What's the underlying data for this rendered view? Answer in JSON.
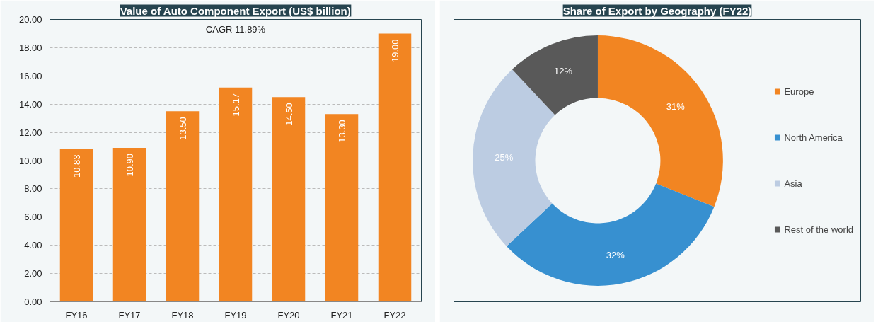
{
  "chart_data": [
    {
      "type": "bar",
      "title": "Value of Auto Component Export (US$ billion)",
      "categories": [
        "FY16",
        "FY17",
        "FY18",
        "FY19",
        "FY20",
        "FY21",
        "FY22"
      ],
      "values": [
        10.83,
        10.9,
        13.5,
        15.17,
        14.5,
        13.3,
        19.0
      ],
      "value_labels": [
        "10.83",
        "10.90",
        "13.50",
        "15.17",
        "14.50",
        "13.30",
        "19.00"
      ],
      "color": "#f28522",
      "ylim": [
        0,
        20
      ],
      "yticks": [
        {
          "value": 0,
          "label": "0.00"
        },
        {
          "value": 2,
          "label": "2.00"
        },
        {
          "value": 4,
          "label": "4.00"
        },
        {
          "value": 6,
          "label": "6.00"
        },
        {
          "value": 8,
          "label": "8.00"
        },
        {
          "value": 10,
          "label": "10.00"
        },
        {
          "value": 12,
          "label": "12.00"
        },
        {
          "value": 14,
          "label": "14.00"
        },
        {
          "value": 16,
          "label": "16.00"
        },
        {
          "value": 18,
          "label": "18.00"
        },
        {
          "value": 20,
          "label": "20.00"
        }
      ],
      "grid": "y",
      "annotations": [
        "CAGR 11.89%"
      ]
    },
    {
      "type": "donut",
      "title": "Share of Export by Geography (FY22)",
      "categories": [
        "Europe",
        "North America",
        "Asia",
        "Rest of the world"
      ],
      "values": [
        31,
        32,
        25,
        12
      ],
      "colors": [
        "#f28522",
        "#3790d0",
        "#bccce2",
        "#595959"
      ],
      "value_labels": [
        "31%",
        "32%",
        "25%",
        "12%"
      ],
      "legend": "right"
    }
  ]
}
